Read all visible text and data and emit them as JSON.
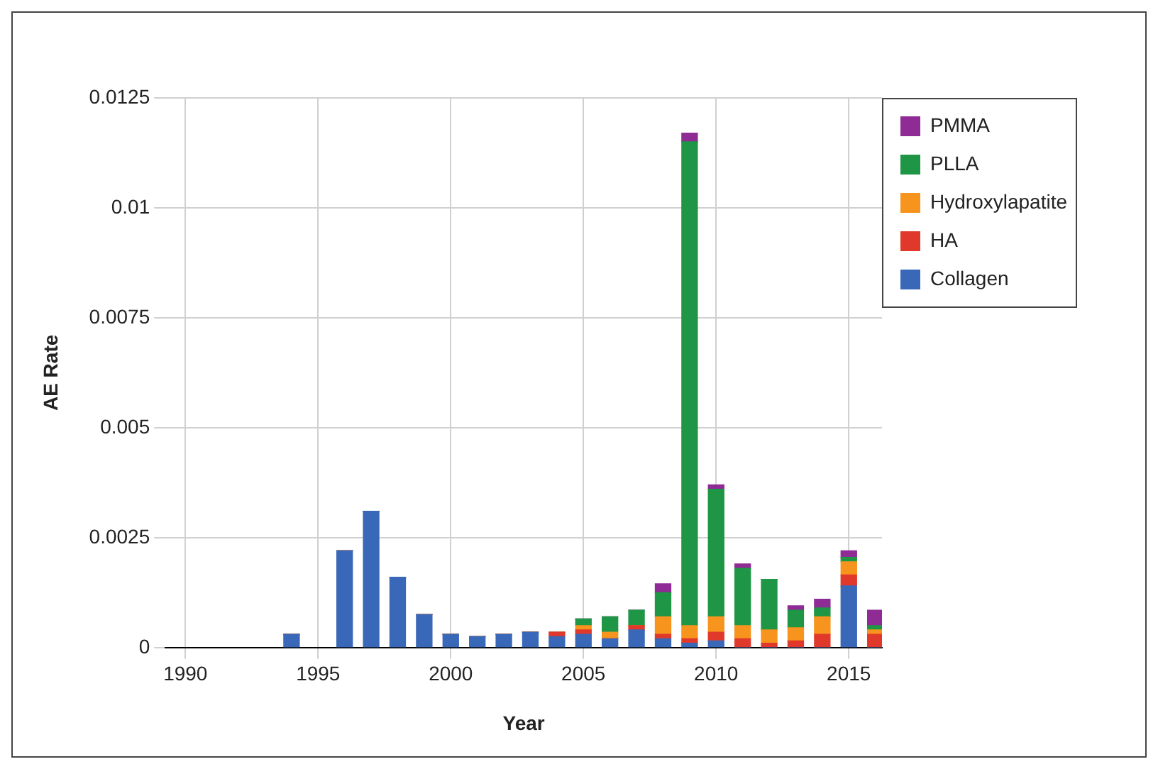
{
  "chart_data": {
    "type": "bar",
    "stacked": true,
    "xlabel": "Year",
    "ylabel": "AE Rate",
    "x": [
      1994,
      1996,
      1997,
      1998,
      1999,
      2000,
      2001,
      2002,
      2003,
      2004,
      2005,
      2006,
      2007,
      2008,
      2009,
      2010,
      2011,
      2012,
      2013,
      2014,
      2015,
      2016
    ],
    "series": [
      {
        "name": "Collagen",
        "color": "#3a68b8",
        "values": [
          0.0003,
          0.0022,
          0.0031,
          0.0016,
          0.00075,
          0.0003,
          0.00025,
          0.0003,
          0.00035,
          0.00025,
          0.0003,
          0.0002,
          0.0004,
          0.0002,
          0.0001,
          0.00015,
          0,
          0,
          0,
          0,
          0.0014,
          0
        ]
      },
      {
        "name": "HA",
        "color": "#e0392b",
        "values": [
          0,
          0,
          0,
          0,
          0,
          0,
          0,
          0,
          0,
          0.0001,
          0.0001,
          0,
          0.0001,
          0.0001,
          0.0001,
          0.0002,
          0.0002,
          0.0001,
          0.00015,
          0.0003,
          0.00025,
          0.0003
        ]
      },
      {
        "name": "Hydroxylapatite",
        "color": "#f7941d",
        "values": [
          0,
          0,
          0,
          0,
          0,
          0,
          0,
          0,
          0,
          0,
          0.0001,
          0.00015,
          0,
          0.0004,
          0.0003,
          0.00035,
          0.0003,
          0.0003,
          0.0003,
          0.0004,
          0.0003,
          0.0001
        ]
      },
      {
        "name": "PLLA",
        "color": "#1e9645",
        "values": [
          0,
          0,
          0,
          0,
          0,
          0,
          0,
          0,
          0,
          0,
          0.00015,
          0.00035,
          0.00035,
          0.00055,
          0.011,
          0.0029,
          0.0013,
          0.00115,
          0.0004,
          0.0002,
          0.0001,
          0.0001
        ]
      },
      {
        "name": "PMMA",
        "color": "#8e2b95",
        "values": [
          0,
          0,
          0,
          0,
          0,
          0,
          0,
          0,
          0,
          0,
          0,
          0,
          0,
          0.0002,
          0.0002,
          0.0001,
          0.0001,
          0,
          0.0001,
          0.0002,
          0.00015,
          0.00035
        ]
      }
    ],
    "xlim": [
      1989.25,
      2016.25
    ],
    "xticks": [
      1990,
      1995,
      2000,
      2005,
      2010,
      2015
    ],
    "ylim": [
      0,
      0.0125
    ],
    "yticks": [
      0,
      0.0025,
      0.005,
      0.0075,
      0.01,
      0.0125
    ],
    "grid": true,
    "legend": "right"
  }
}
